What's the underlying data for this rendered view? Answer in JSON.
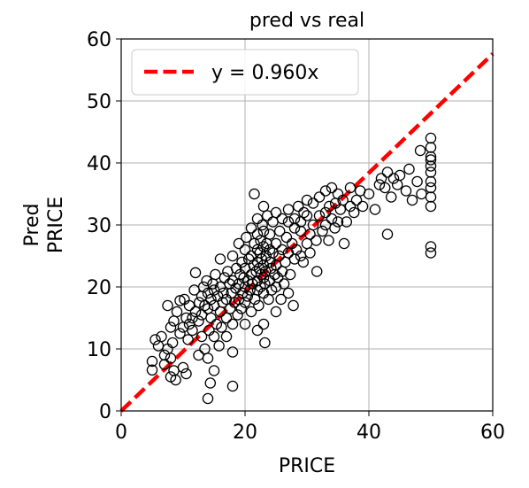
{
  "chart_data": {
    "type": "scatter",
    "title": "pred vs real",
    "xlabel": "PRICE",
    "ylabel": [
      "Pred",
      "PRICE"
    ],
    "xlim": [
      0,
      60
    ],
    "ylim": [
      0,
      60
    ],
    "xticks": [
      "0",
      "20",
      "40",
      "60"
    ],
    "yticks": [
      "0",
      "10",
      "20",
      "30",
      "40",
      "50",
      "60"
    ],
    "grid": true,
    "legend_position": "upper-left",
    "fit_line": {
      "label": "y = 0.960x",
      "slope": 0.96,
      "color": "#ff0000",
      "style": "dashed"
    },
    "marker": {
      "shape": "open-circle",
      "edge_color": "#000000"
    },
    "points": [
      [
        5,
        8
      ],
      [
        5,
        6.6
      ],
      [
        5.5,
        11.5
      ],
      [
        6,
        10.5
      ],
      [
        6.5,
        12
      ],
      [
        7,
        9
      ],
      [
        7,
        7.5
      ],
      [
        7.5,
        17
      ],
      [
        7.5,
        10
      ],
      [
        8,
        5.5
      ],
      [
        8,
        13.5
      ],
      [
        8,
        8.5
      ],
      [
        8.3,
        11
      ],
      [
        8.5,
        6.5
      ],
      [
        8.5,
        14.5
      ],
      [
        8.8,
        5
      ],
      [
        9,
        16
      ],
      [
        9.5,
        12.5
      ],
      [
        9.5,
        17.8
      ],
      [
        10,
        7
      ],
      [
        10,
        13.5
      ],
      [
        10.2,
        18
      ],
      [
        10.5,
        15
      ],
      [
        10.5,
        6
      ],
      [
        10.8,
        11.5
      ],
      [
        11,
        14
      ],
      [
        11,
        17
      ],
      [
        11.5,
        15
      ],
      [
        11.5,
        13
      ],
      [
        11.8,
        19.5
      ],
      [
        12,
        22.3
      ],
      [
        12,
        16
      ],
      [
        12.5,
        9
      ],
      [
        12.5,
        14.5
      ],
      [
        12.6,
        17.5
      ],
      [
        13,
        12
      ],
      [
        13,
        18.5
      ],
      [
        13,
        15.5
      ],
      [
        13.3,
        20
      ],
      [
        13.5,
        10
      ],
      [
        13.5,
        17
      ],
      [
        13.8,
        21
      ],
      [
        14,
        2
      ],
      [
        14,
        8.5
      ],
      [
        14,
        16.5
      ],
      [
        14,
        19
      ],
      [
        14.2,
        13
      ],
      [
        14.4,
        4.5
      ],
      [
        14.5,
        18
      ],
      [
        14.5,
        15
      ],
      [
        14.8,
        20.5
      ],
      [
        15,
        6.5
      ],
      [
        15,
        12
      ],
      [
        15,
        17
      ],
      [
        15,
        19.5
      ],
      [
        15.2,
        22
      ],
      [
        15.4,
        14
      ],
      [
        15.6,
        18.5
      ],
      [
        15.8,
        10.5
      ],
      [
        16,
        16
      ],
      [
        16,
        20
      ],
      [
        16,
        24.5
      ],
      [
        16.2,
        13.5
      ],
      [
        16.4,
        17.5
      ],
      [
        16.5,
        19
      ],
      [
        16.7,
        21.5
      ],
      [
        17,
        12
      ],
      [
        17,
        18
      ],
      [
        17,
        15
      ],
      [
        17.2,
        22.5
      ],
      [
        17.5,
        20.5
      ],
      [
        17.6,
        16.5
      ],
      [
        17.8,
        19
      ],
      [
        18,
        4
      ],
      [
        18,
        9.5
      ],
      [
        18,
        14
      ],
      [
        18,
        21
      ],
      [
        18,
        25
      ],
      [
        18.3,
        17.5
      ],
      [
        18.5,
        19.8
      ],
      [
        18.6,
        23
      ],
      [
        18.8,
        15.5
      ],
      [
        19,
        18
      ],
      [
        19,
        20.5
      ],
      [
        19,
        27
      ],
      [
        19.2,
        22
      ],
      [
        19.4,
        16.5
      ],
      [
        19.5,
        24
      ],
      [
        19.6,
        19
      ],
      [
        19.8,
        21.5
      ],
      [
        20,
        14
      ],
      [
        20,
        17.5
      ],
      [
        20,
        20
      ],
      [
        20,
        23
      ],
      [
        20,
        26
      ],
      [
        20.2,
        28
      ],
      [
        20.4,
        18.5
      ],
      [
        20.5,
        21
      ],
      [
        20.6,
        24.5
      ],
      [
        20.8,
        19.5
      ],
      [
        21,
        16
      ],
      [
        21,
        22
      ],
      [
        21,
        25
      ],
      [
        21,
        29.5
      ],
      [
        21.2,
        20.5
      ],
      [
        21.4,
        23.5
      ],
      [
        21.5,
        27
      ],
      [
        21.5,
        35
      ],
      [
        21.6,
        18
      ],
      [
        21.8,
        22.5
      ],
      [
        22,
        13
      ],
      [
        22,
        19.5
      ],
      [
        22,
        21
      ],
      [
        22,
        24
      ],
      [
        22,
        26
      ],
      [
        22,
        28.5
      ],
      [
        22,
        31
      ],
      [
        22.2,
        17
      ],
      [
        22.3,
        23
      ],
      [
        22.4,
        25.5
      ],
      [
        22.5,
        20
      ],
      [
        22.5,
        27.5
      ],
      [
        22.6,
        22
      ],
      [
        22.7,
        24.5
      ],
      [
        22.8,
        30
      ],
      [
        23,
        14
      ],
      [
        23,
        19
      ],
      [
        23,
        21.5
      ],
      [
        23,
        23.5
      ],
      [
        23,
        26.5
      ],
      [
        23,
        29
      ],
      [
        23,
        33
      ],
      [
        23.2,
        11
      ],
      [
        23.2,
        20.5
      ],
      [
        23.3,
        22.5
      ],
      [
        23.4,
        25
      ],
      [
        23.5,
        27
      ],
      [
        23.6,
        31.5
      ],
      [
        23.8,
        18
      ],
      [
        24,
        21
      ],
      [
        24,
        24
      ],
      [
        24,
        26
      ],
      [
        24,
        28.5
      ],
      [
        24.2,
        23
      ],
      [
        24.3,
        19.5
      ],
      [
        24.5,
        25.5
      ],
      [
        24.5,
        30.5
      ],
      [
        24.8,
        22
      ],
      [
        25,
        16
      ],
      [
        25,
        20
      ],
      [
        25,
        23.5
      ],
      [
        25,
        27
      ],
      [
        25,
        32
      ],
      [
        25.3,
        21.5
      ],
      [
        25.5,
        25
      ],
      [
        25.6,
        29
      ],
      [
        25.8,
        18
      ],
      [
        26,
        22.5
      ],
      [
        26,
        26
      ],
      [
        26,
        31
      ],
      [
        26.3,
        20.5
      ],
      [
        26.5,
        24
      ],
      [
        26.7,
        28
      ],
      [
        27,
        19
      ],
      [
        27,
        25.5
      ],
      [
        27,
        30.5
      ],
      [
        27,
        32.5
      ],
      [
        27.3,
        22
      ],
      [
        27.6,
        27
      ],
      [
        27.8,
        17
      ],
      [
        28,
        24.5
      ],
      [
        28,
        29.5
      ],
      [
        28,
        31
      ],
      [
        28.3,
        26
      ],
      [
        28.6,
        33
      ],
      [
        29,
        25
      ],
      [
        29,
        29
      ],
      [
        29,
        30.5
      ],
      [
        29.4,
        24
      ],
      [
        29.5,
        32
      ],
      [
        30,
        27
      ],
      [
        30,
        31.5
      ],
      [
        30,
        34
      ],
      [
        30.5,
        28.5
      ],
      [
        30.5,
        25.5
      ],
      [
        31,
        30
      ],
      [
        31,
        33.5
      ],
      [
        31.5,
        27.5
      ],
      [
        31.6,
        22.5
      ],
      [
        32,
        31.5
      ],
      [
        32,
        34.5
      ],
      [
        32.5,
        29
      ],
      [
        33,
        32
      ],
      [
        33,
        35.5
      ],
      [
        33,
        30
      ],
      [
        33.5,
        27.5
      ],
      [
        33.6,
        33
      ],
      [
        34,
        31
      ],
      [
        34,
        36
      ],
      [
        34.5,
        29.5
      ],
      [
        34.6,
        33.5
      ],
      [
        35,
        35
      ],
      [
        35,
        30.5
      ],
      [
        35.4,
        32.5
      ],
      [
        35.8,
        34
      ],
      [
        36,
        27
      ],
      [
        36.4,
        30.5
      ],
      [
        37,
        33
      ],
      [
        37,
        36
      ],
      [
        37.6,
        32
      ],
      [
        38,
        34
      ],
      [
        38.6,
        35.5
      ],
      [
        39,
        33
      ],
      [
        40,
        35
      ],
      [
        41,
        32.5
      ],
      [
        41.7,
        36.5
      ],
      [
        42,
        37.5
      ],
      [
        42.6,
        36
      ],
      [
        43,
        28.5
      ],
      [
        43,
        38.5
      ],
      [
        43.6,
        34.5
      ],
      [
        44,
        37.5
      ],
      [
        44.6,
        36.5
      ],
      [
        45,
        38
      ],
      [
        46,
        35.5
      ],
      [
        46.5,
        39
      ],
      [
        47,
        34
      ],
      [
        47.8,
        37
      ],
      [
        48.3,
        42
      ],
      [
        48.5,
        35
      ],
      [
        50,
        25.5
      ],
      [
        50,
        26.5
      ],
      [
        50,
        33
      ],
      [
        50,
        34.5
      ],
      [
        50,
        37
      ],
      [
        50,
        38.5
      ],
      [
        50,
        39.5
      ],
      [
        50,
        40.5
      ],
      [
        50,
        41
      ],
      [
        50,
        42.5
      ],
      [
        50,
        44
      ],
      [
        50,
        36
      ]
    ]
  }
}
